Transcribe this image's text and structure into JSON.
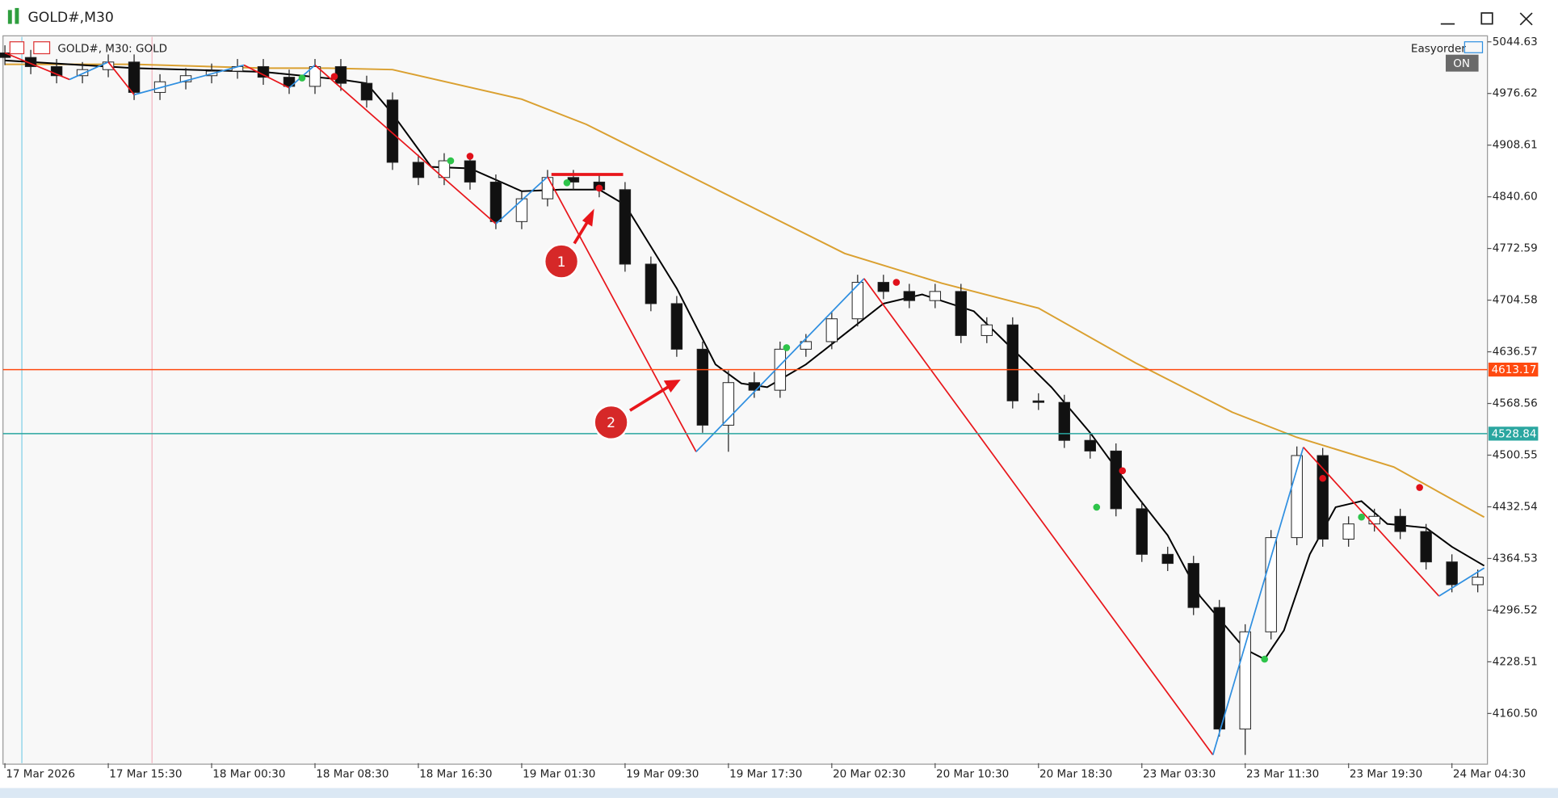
{
  "window": {
    "title": "GOLD#,M30"
  },
  "panel": {
    "label": "Easyorder",
    "button": "ON"
  },
  "callouts": [
    "1",
    "2"
  ],
  "chart_data": {
    "type": "candlestick",
    "symbol_label": "GOLD#, M30:  GOLD",
    "up_color": "#ffffff",
    "down_color": "#111111",
    "x": [
      0,
      4,
      8,
      12,
      16,
      20,
      24,
      28,
      32,
      36,
      40,
      44,
      48,
      52,
      56,
      60,
      64,
      68,
      72,
      76,
      80,
      84,
      88,
      92,
      96,
      100,
      104,
      108,
      112,
      116,
      120,
      124,
      128,
      132,
      136,
      140,
      144,
      148,
      152,
      156,
      160,
      164,
      168,
      172,
      176,
      180,
      184,
      188,
      192,
      196,
      200,
      204,
      208,
      212,
      216,
      220,
      224,
      228
    ],
    "open": [
      5030,
      5024,
      5012,
      5000,
      5008,
      5018,
      4978,
      4992,
      5000,
      5006,
      5012,
      4998,
      4986,
      5012,
      4990,
      4968,
      4886,
      4866,
      4888,
      4860,
      4808,
      4838,
      4866,
      4860,
      4850,
      4752,
      4700,
      4640,
      4540,
      4596,
      4586,
      4640,
      4650,
      4680,
      4728,
      4716,
      4704,
      4716,
      4658,
      4672,
      4572,
      4570,
      4520,
      4506,
      4430,
      4370,
      4358,
      4300,
      4140,
      4268,
      4392,
      4500,
      4390,
      4410,
      4420,
      4400,
      4360,
      4330
    ],
    "high": [
      5040,
      5034,
      5022,
      5018,
      5028,
      5028,
      5002,
      5010,
      5016,
      5022,
      5022,
      5008,
      5022,
      5022,
      5000,
      4978,
      4896,
      4898,
      4898,
      4870,
      4848,
      4876,
      4876,
      4870,
      4860,
      4762,
      4710,
      4650,
      4612,
      4610,
      4650,
      4660,
      4690,
      4738,
      4738,
      4726,
      4726,
      4726,
      4682,
      4682,
      4582,
      4580,
      4530,
      4516,
      4440,
      4380,
      4368,
      4310,
      4278,
      4402,
      4512,
      4510,
      4420,
      4430,
      4430,
      4410,
      4370,
      4350
    ],
    "low": [
      5014,
      5002,
      4990,
      4990,
      4998,
      4968,
      4968,
      4982,
      4990,
      4996,
      4988,
      4976,
      4976,
      4980,
      4958,
      4876,
      4856,
      4856,
      4850,
      4798,
      4798,
      4828,
      4850,
      4840,
      4742,
      4690,
      4630,
      4530,
      4505,
      4576,
      4576,
      4630,
      4640,
      4670,
      4706,
      4694,
      4694,
      4648,
      4648,
      4562,
      4560,
      4510,
      4496,
      4420,
      4360,
      4348,
      4290,
      4130,
      4106,
      4258,
      4382,
      4380,
      4380,
      4400,
      4390,
      4350,
      4320,
      4320
    ],
    "close": [
      5024,
      5012,
      5000,
      5008,
      5018,
      4978,
      4992,
      5000,
      5006,
      5012,
      4998,
      4986,
      5012,
      4990,
      4968,
      4886,
      4866,
      4888,
      4860,
      4808,
      4838,
      4866,
      4860,
      4850,
      4752,
      4700,
      4640,
      4540,
      4596,
      4586,
      4640,
      4650,
      4680,
      4728,
      4716,
      4704,
      4716,
      4658,
      4672,
      4572,
      4570,
      4520,
      4506,
      4430,
      4370,
      4358,
      4300,
      4140,
      4268,
      4392,
      4500,
      4390,
      4410,
      4420,
      4400,
      4360,
      4330,
      4340
    ],
    "xlim": [
      -0.3,
      229.5
    ],
    "xticks": [
      {
        "value": 0,
        "label": "17 Mar 2026"
      },
      {
        "value": 16,
        "label": "17 Mar 15:30"
      },
      {
        "value": 32,
        "label": "18 Mar 00:30"
      },
      {
        "value": 48,
        "label": "18 Mar 08:30"
      },
      {
        "value": 64,
        "label": "18 Mar 16:30"
      },
      {
        "value": 80,
        "label": "19 Mar 01:30"
      },
      {
        "value": 96,
        "label": "19 Mar 09:30"
      },
      {
        "value": 112,
        "label": "19 Mar 17:30"
      },
      {
        "value": 128,
        "label": "20 Mar 02:30"
      },
      {
        "value": 144,
        "label": "20 Mar 10:30"
      },
      {
        "value": 160,
        "label": "20 Mar 18:30"
      },
      {
        "value": 176,
        "label": "23 Mar 03:30"
      },
      {
        "value": 192,
        "label": "23 Mar 11:30"
      },
      {
        "value": 208,
        "label": "23 Mar 19:30"
      },
      {
        "value": 224,
        "label": "24 Mar 04:30"
      }
    ],
    "ylim": [
      4095.1,
      5052.5
    ],
    "yticks": [
      5044.63,
      4976.62,
      4908.61,
      {
        "value": 4840.6,
        "label": "4840.60"
      },
      4772.59,
      4704.58,
      4636.57,
      4568.56,
      4500.55,
      4432.54,
      4364.53,
      4296.52,
      4228.51,
      {
        "value": 4160.5,
        "label": "4160.50"
      }
    ],
    "lines": [
      {
        "color": "#daa030",
        "x": [
          0,
          20,
          40,
          50,
          60,
          80,
          90,
          110,
          130,
          145,
          160,
          175,
          190,
          200,
          215,
          229
        ],
        "values": [
          5015,
          5015,
          5010,
          5010,
          5008,
          4969,
          4936,
          4851,
          4766,
          4727,
          4694,
          4622,
          4557,
          4524,
          4485,
          4419
        ]
      },
      {
        "color": "#000000",
        "x": [
          0,
          20,
          40,
          52,
          56,
          60,
          66,
          72,
          80,
          86,
          92,
          96,
          104,
          110,
          114,
          118,
          124,
          130,
          136,
          142,
          150,
          156,
          162,
          168,
          174,
          180,
          185,
          192,
          195,
          198,
          202,
          206,
          210,
          214,
          220,
          224,
          229
        ],
        "values": [
          5020,
          5010,
          5005,
          4995,
          4990,
          4950,
          4880,
          4878,
          4848,
          4850,
          4850,
          4830,
          4720,
          4620,
          4595,
          4590,
          4620,
          4660,
          4700,
          4712,
          4690,
          4640,
          4590,
          4530,
          4460,
          4395,
          4315,
          4245,
          4232,
          4270,
          4370,
          4432,
          4440,
          4410,
          4405,
          4380,
          4355
        ]
      }
    ],
    "zigzag": {
      "up_color": "#2f8fe0",
      "down_color": "#e8161b",
      "x": [
        0,
        10,
        16,
        20,
        37,
        44,
        48,
        76,
        84,
        107,
        133,
        187,
        201,
        222,
        229
      ],
      "values": [
        5030,
        4995,
        5018,
        4975,
        5014,
        4984,
        5014,
        4805,
        4867,
        4505,
        4733,
        4106,
        4511,
        4315,
        4352
      ]
    },
    "signals": [
      {
        "color": "#2ec44a",
        "x": [
          46,
          69,
          87,
          121,
          169,
          195,
          210
        ],
        "values": [
          4997,
          4888,
          4859,
          4642,
          4432,
          4232,
          4419
        ]
      },
      {
        "color": "#e0101a",
        "x": [
          51,
          72,
          92,
          138,
          173,
          204,
          219
        ],
        "values": [
          4999,
          4894,
          4852,
          4728,
          4480,
          4470,
          4458
        ]
      }
    ],
    "levels": [
      {
        "value": 4613.17,
        "color": "#ff4a10"
      },
      {
        "value": 4528.84,
        "color": "#2aa6a0"
      }
    ],
    "level_mark": {
      "value": 4870,
      "x": [
        84.6,
        95.7
      ],
      "color": "#e8161b"
    }
  }
}
